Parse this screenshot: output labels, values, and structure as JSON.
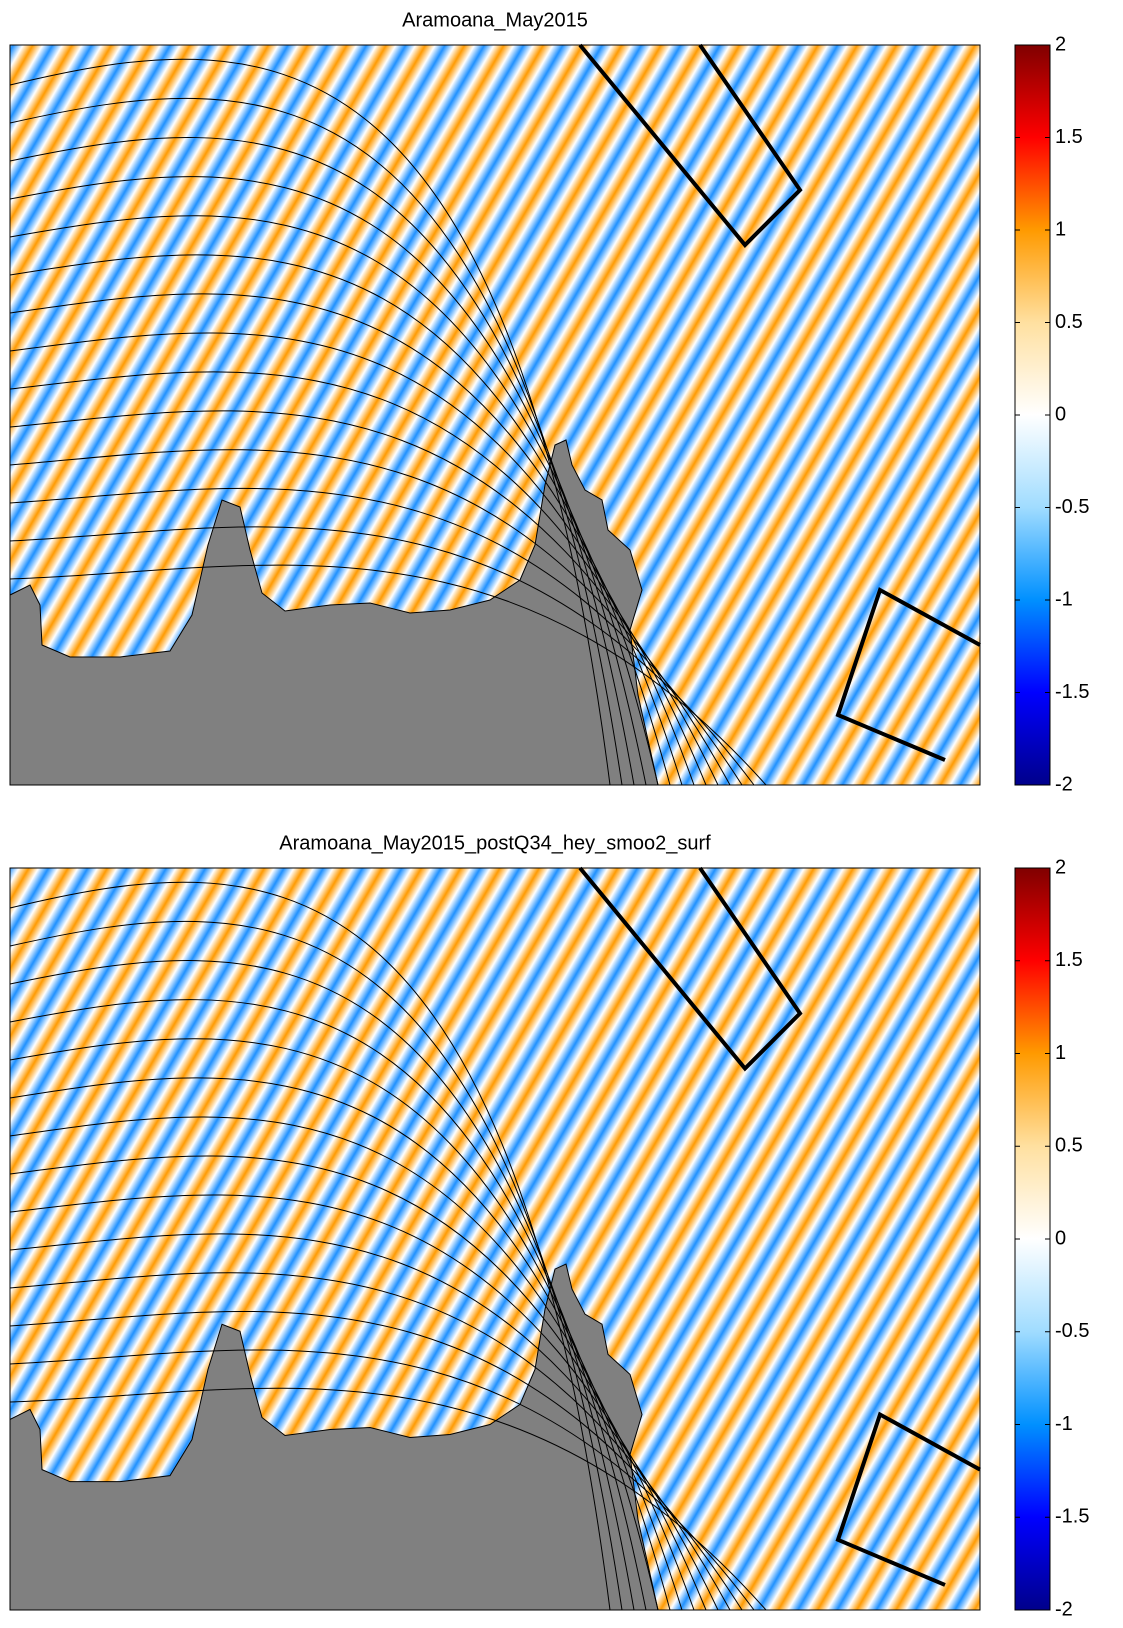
{
  "chart_data": [
    {
      "type": "heatmap",
      "title": "Aramoana_May2015",
      "clim": [
        -2,
        2
      ],
      "colorbar_ticks": [
        2,
        1.5,
        1,
        0.5,
        0,
        -0.5,
        -1,
        -1.5,
        -2
      ],
      "colormap": [
        "#00008b",
        "#0000ff",
        "#0090ff",
        "#a0dcff",
        "#ffffff",
        "#ffe0a0",
        "#ff9a00",
        "#ff0000",
        "#800000"
      ]
    },
    {
      "type": "heatmap",
      "title": "Aramoana_May2015_postQ34_hey_smoo2_surf",
      "clim": [
        -2,
        2
      ],
      "colorbar_ticks": [
        2,
        1.5,
        1,
        0.5,
        0,
        -0.5,
        -1,
        -1.5,
        -2
      ],
      "colormap": [
        "#00008b",
        "#0000ff",
        "#0090ff",
        "#a0dcff",
        "#ffffff",
        "#ffe0a0",
        "#ff9a00",
        "#ff0000",
        "#800000"
      ]
    }
  ]
}
